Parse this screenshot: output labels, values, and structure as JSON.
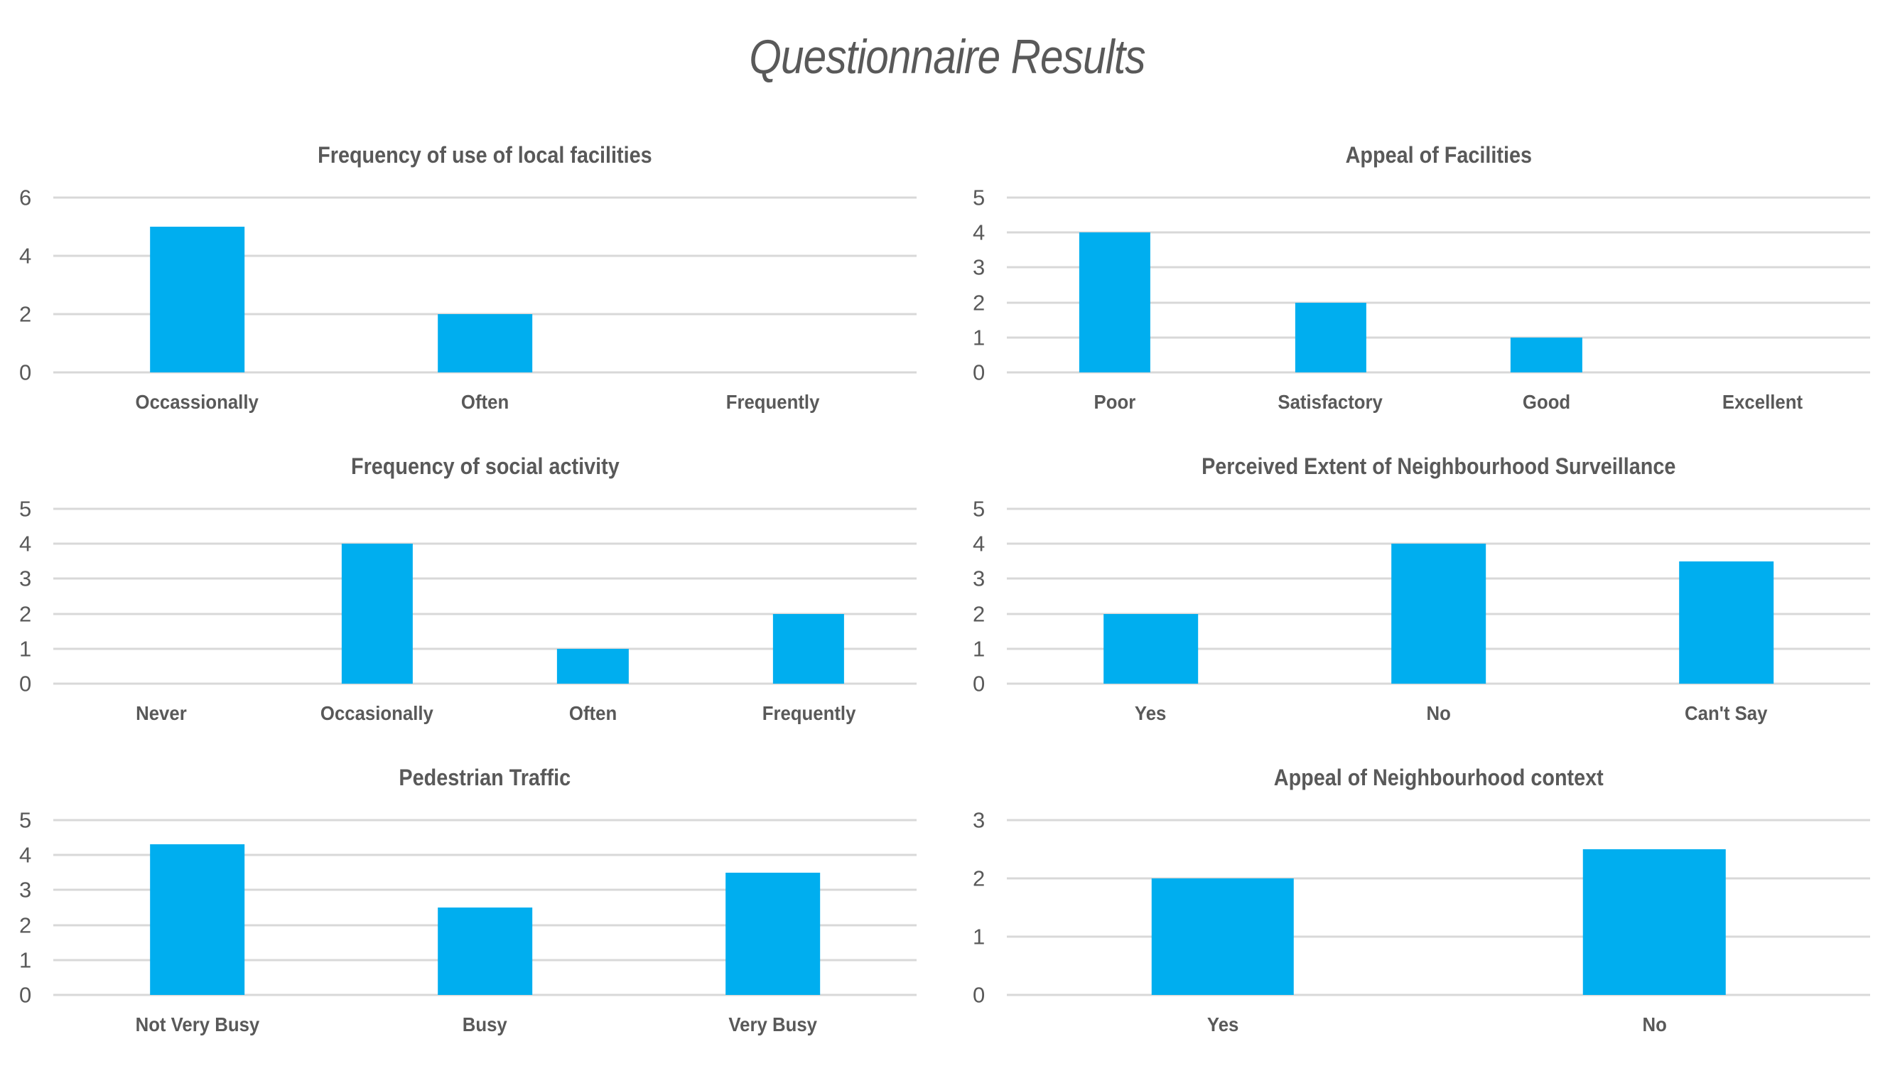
{
  "page_title": "Questionnaire Results",
  "colors": {
    "bar": "#00AEEF",
    "grid": "#D8D8D8",
    "text": "#595959"
  },
  "chart_data": [
    {
      "type": "bar",
      "title": "Frequency of use of local facilities",
      "categories": [
        "Occassionally",
        "Often",
        "Frequently"
      ],
      "values": [
        5,
        2,
        0
      ],
      "xlabel": "",
      "ylabel": "",
      "ylim": [
        0,
        6
      ],
      "yticks": [
        0,
        2,
        4,
        6
      ],
      "grid": "horizontal",
      "legend": "none"
    },
    {
      "type": "bar",
      "title": "Appeal of Facilities",
      "categories": [
        "Poor",
        "Satisfactory",
        "Good",
        "Excellent"
      ],
      "values": [
        4,
        2,
        1,
        0
      ],
      "xlabel": "",
      "ylabel": "",
      "ylim": [
        0,
        5
      ],
      "yticks": [
        0,
        1,
        2,
        3,
        4,
        5
      ],
      "grid": "horizontal",
      "legend": "none"
    },
    {
      "type": "bar",
      "title": "Frequency of social activity",
      "categories": [
        "Never",
        "Occasionally",
        "Often",
        "Frequently"
      ],
      "values": [
        0,
        4,
        1,
        2
      ],
      "xlabel": "",
      "ylabel": "",
      "ylim": [
        0,
        5
      ],
      "yticks": [
        0,
        1,
        2,
        3,
        4,
        5
      ],
      "grid": "horizontal",
      "legend": "none"
    },
    {
      "type": "bar",
      "title": "Perceived Extent of Neighbourhood Surveillance",
      "categories": [
        "Yes",
        "No",
        "Can't Say"
      ],
      "values": [
        2,
        4,
        3.5
      ],
      "xlabel": "",
      "ylabel": "",
      "ylim": [
        0,
        5
      ],
      "yticks": [
        0,
        1,
        2,
        3,
        4,
        5
      ],
      "grid": "horizontal",
      "legend": "none"
    },
    {
      "type": "bar",
      "title": "Pedestrian Traffic",
      "categories": [
        "Not Very Busy",
        "Busy",
        "Very Busy"
      ],
      "values": [
        4.3,
        2.5,
        3.5
      ],
      "xlabel": "",
      "ylabel": "",
      "ylim": [
        0,
        5
      ],
      "yticks": [
        0,
        1,
        2,
        3,
        4,
        5
      ],
      "grid": "horizontal",
      "legend": "none"
    },
    {
      "type": "bar",
      "title": "Appeal of Neighbourhood context",
      "categories": [
        "Yes",
        "No"
      ],
      "values": [
        2,
        2.5
      ],
      "xlabel": "",
      "ylabel": "",
      "ylim": [
        0,
        3
      ],
      "yticks": [
        0,
        1,
        2,
        3
      ],
      "grid": "horizontal",
      "legend": "none"
    }
  ]
}
